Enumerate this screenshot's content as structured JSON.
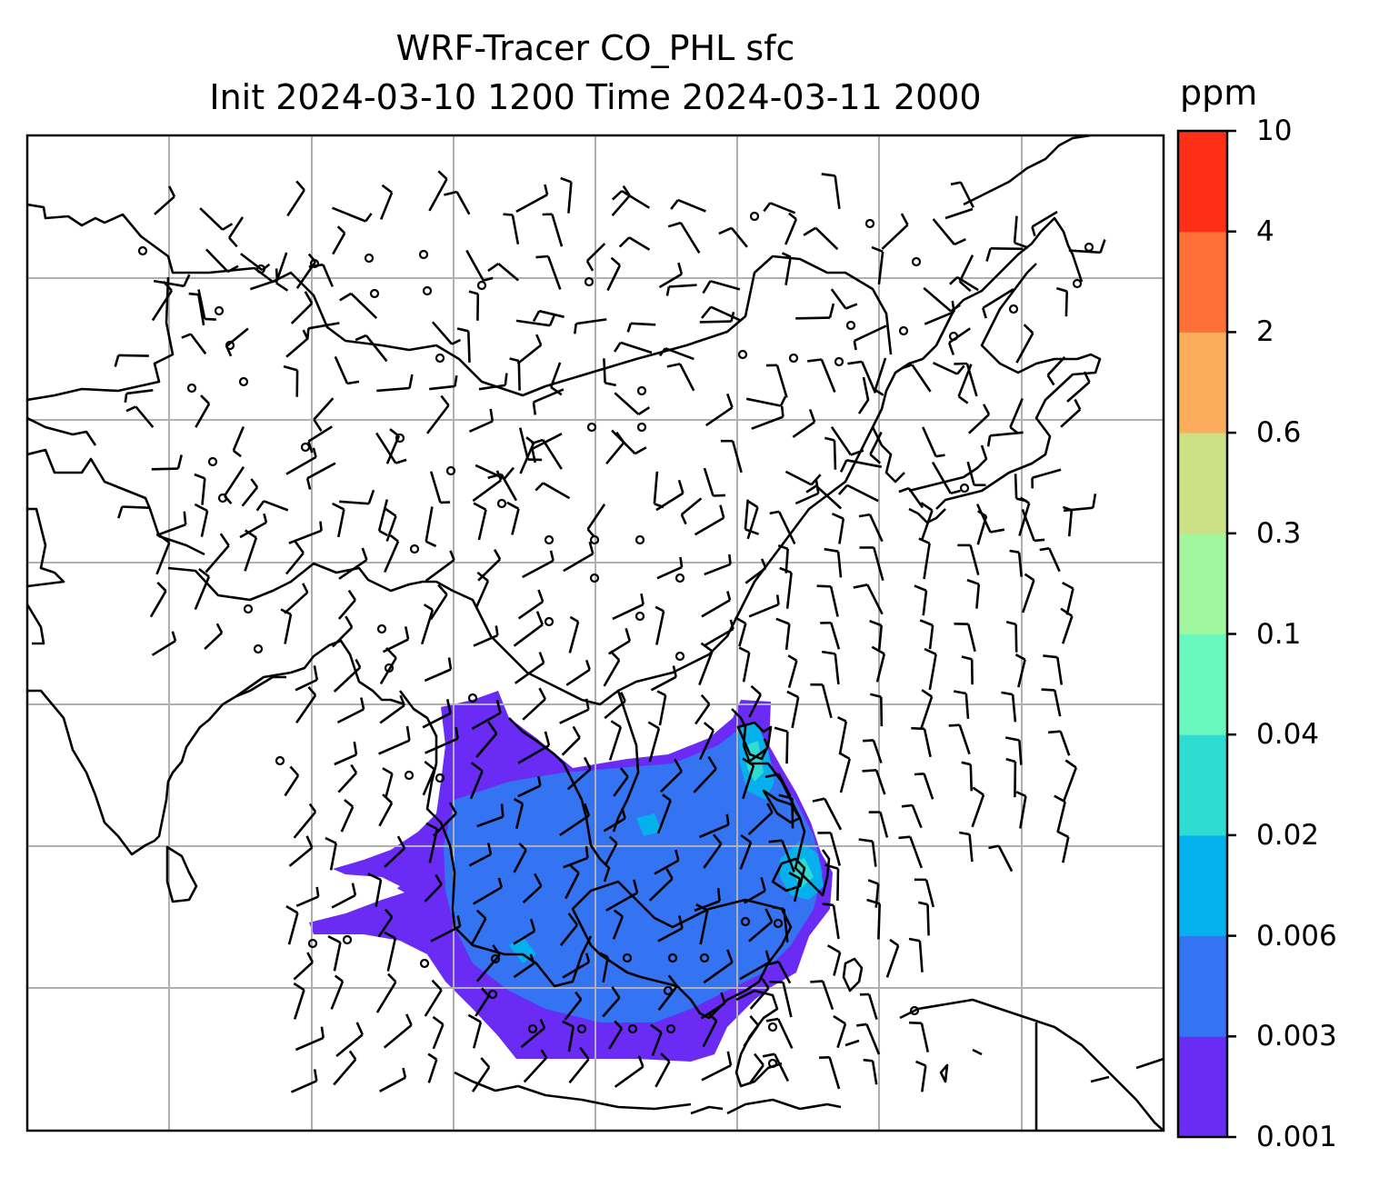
{
  "title": {
    "line1": "WRF-Tracer CO_PHL sfc",
    "line2": "Init 2024-03-10 1200 Time 2024-03-11 2000"
  },
  "colorbar": {
    "unit": "ppm",
    "levels": [
      "0.001",
      "0.003",
      "0.006",
      "0.02",
      "0.04",
      "0.1",
      "0.3",
      "0.6",
      "2",
      "4",
      "10"
    ],
    "colors": [
      "#6a2cf5",
      "#3474f2",
      "#05b1ec",
      "#2fdcd4",
      "#69f9bf",
      "#a0f79d",
      "#cce086",
      "#fbad5d",
      "#ff7038",
      "#fe2f17"
    ]
  },
  "map": {
    "gridlines": true,
    "feature": "coastlines with wind barbs and tracer concentration plume over the South China Sea / Philippines / Borneo region"
  }
}
